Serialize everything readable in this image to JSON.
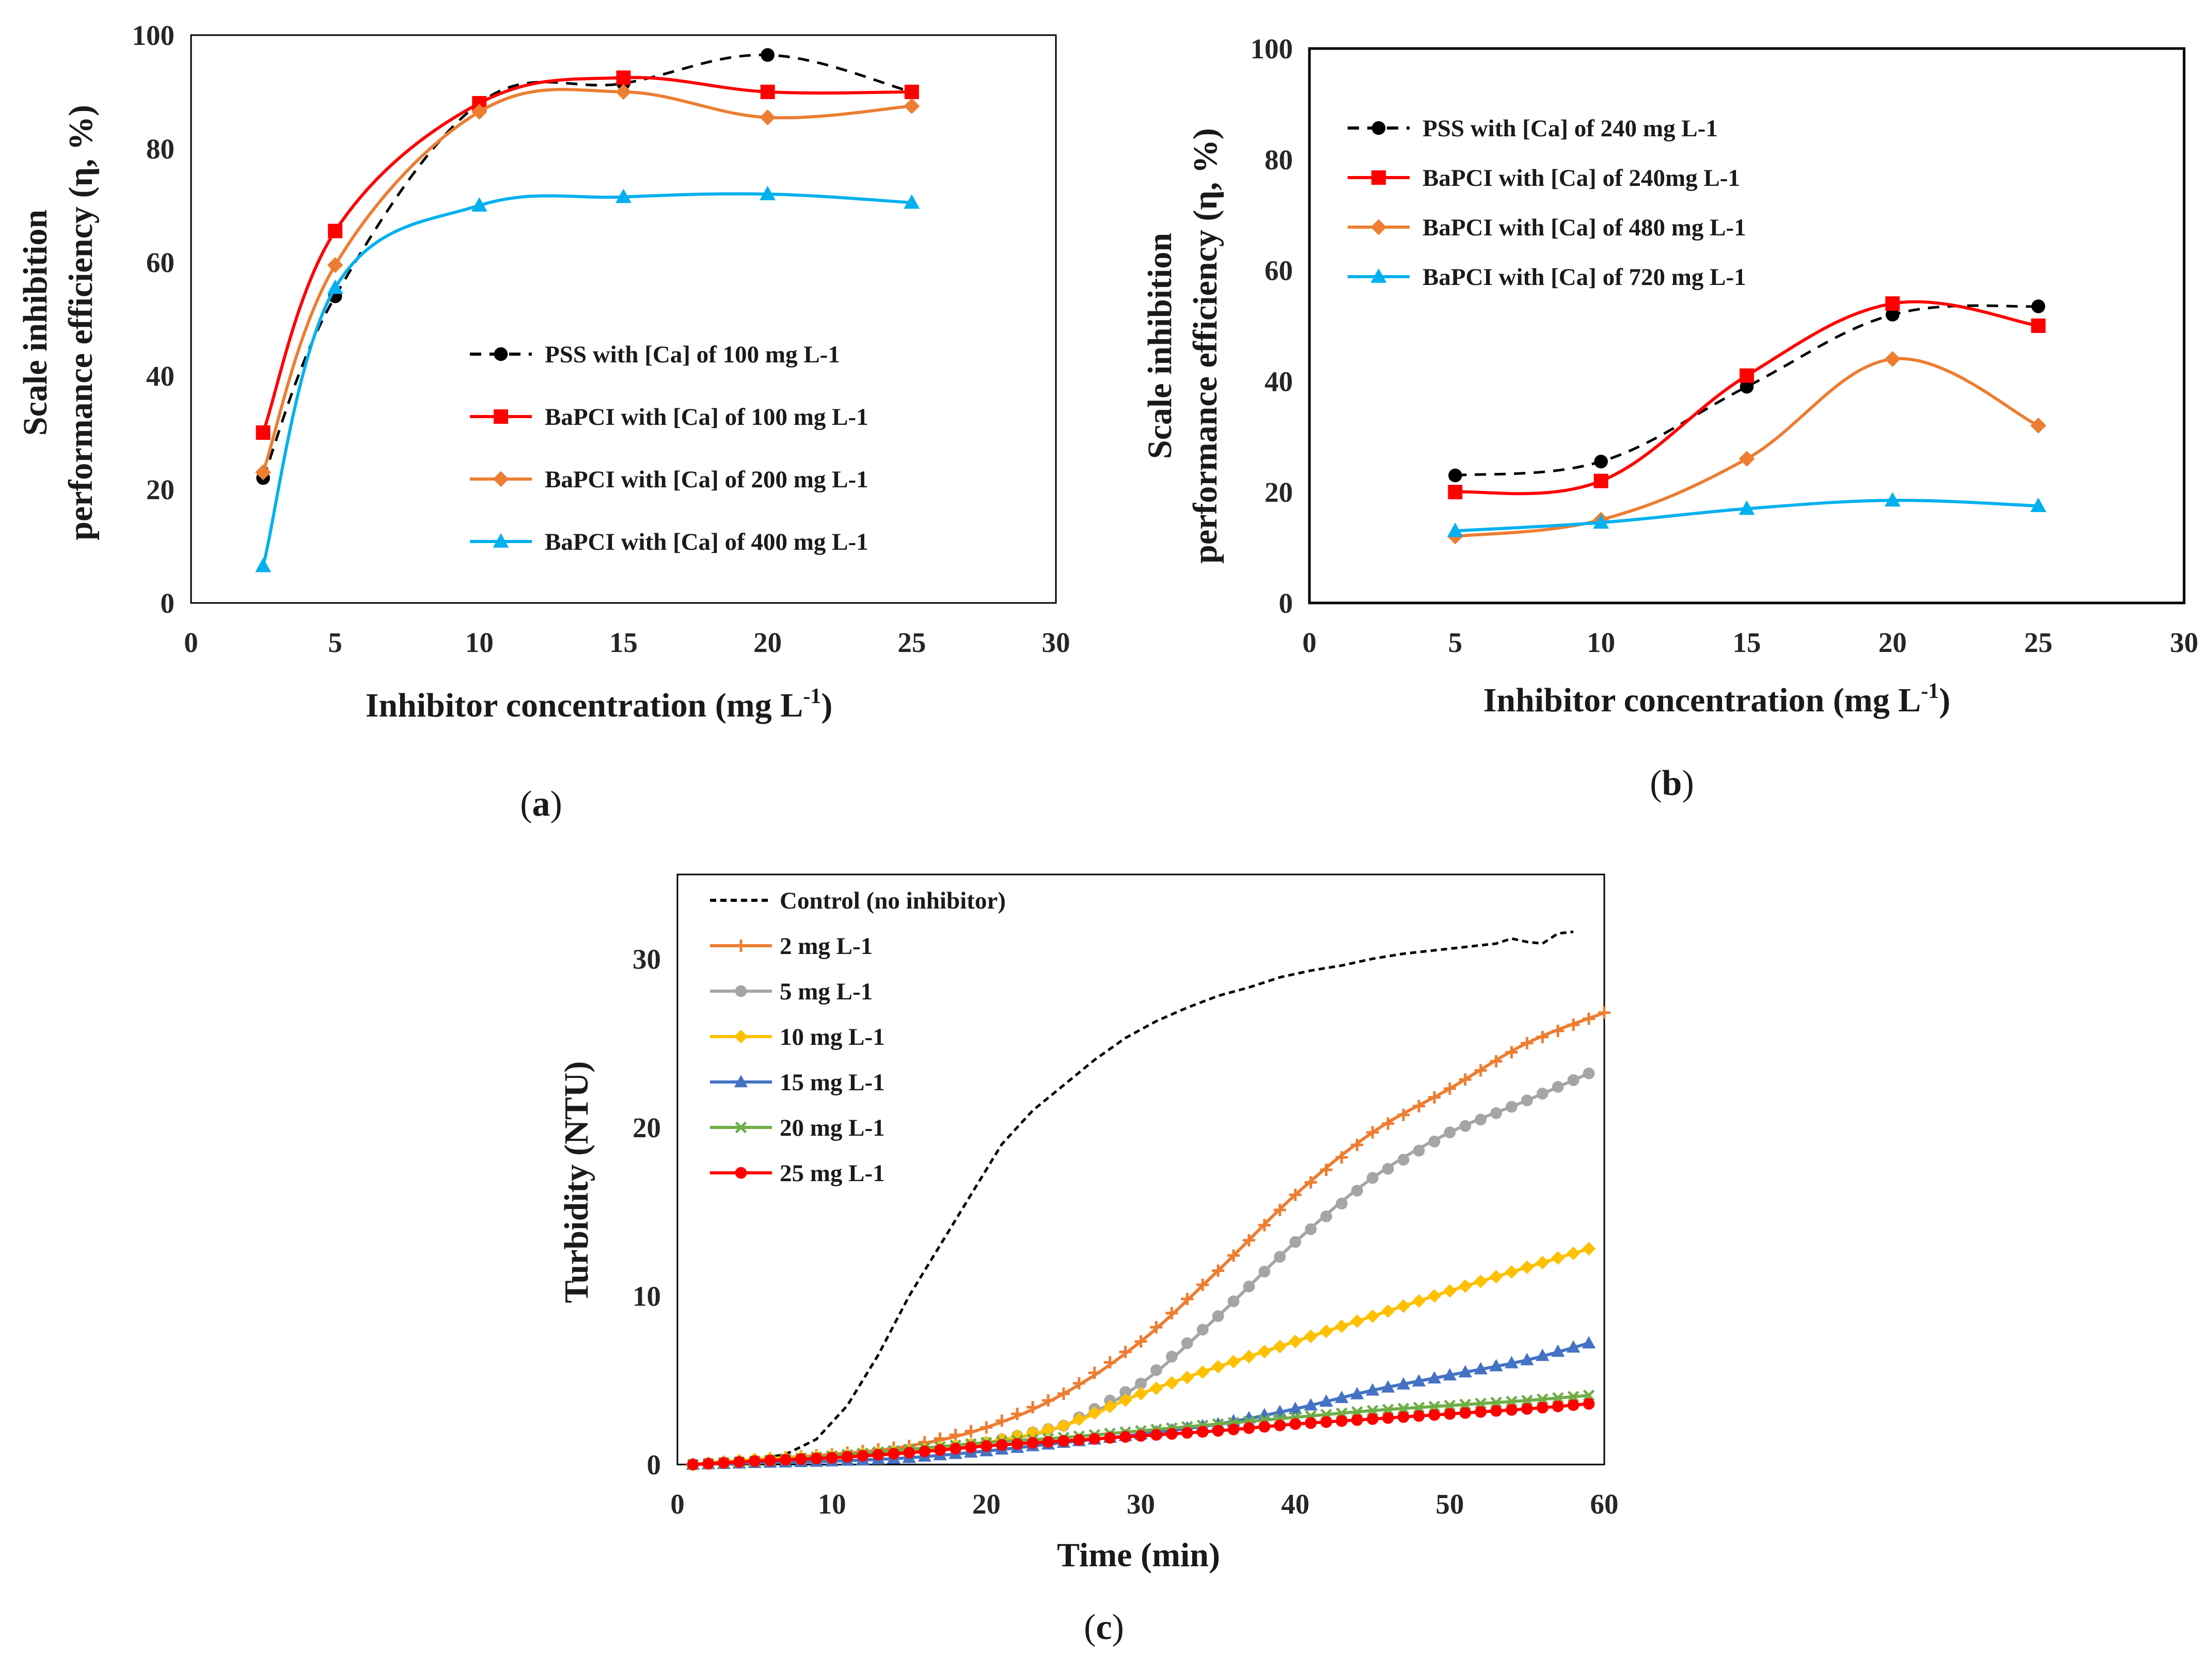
{
  "colors": {
    "black": "#000000",
    "red": "#ff0000",
    "orange": "#ed7d31",
    "cyan": "#00b0f0",
    "gray": "#a5a5a5",
    "yellow": "#ffc000",
    "blue": "#4472c4",
    "green": "#70ad47"
  },
  "chart_data": [
    {
      "id": "a",
      "type": "line",
      "caption": "a",
      "xlabel": "Inhibitor concentration (mg L",
      "xlabel_sup": "-1",
      "xlabel_end": ")",
      "ylabel_line1": "Scale inhibition",
      "ylabel_line2": "performance efficiency (η, %)",
      "xlim": [
        0,
        30
      ],
      "ylim": [
        0,
        100
      ],
      "xticks": [
        0,
        5,
        10,
        15,
        20,
        25,
        30
      ],
      "yticks": [
        0,
        20,
        40,
        60,
        80,
        100
      ],
      "legend_position": "center-right",
      "series": [
        {
          "name": "PSS with [Ca] of 100 mg L-1",
          "color": "#000000",
          "marker": "circle",
          "dashed": true,
          "x": [
            2.5,
            5,
            10,
            15,
            20,
            25
          ],
          "y": [
            22,
            54,
            88,
            91.5,
            96.5,
            90
          ]
        },
        {
          "name": "BaPCI with [Ca] of 100 mg L-1",
          "color": "#ff0000",
          "marker": "square",
          "dashed": false,
          "x": [
            2.5,
            5,
            10,
            15,
            20,
            25
          ],
          "y": [
            30,
            65.5,
            88,
            92.5,
            90,
            90
          ]
        },
        {
          "name": "BaPCI with [Ca] of 200 mg L-1",
          "color": "#ed7d31",
          "marker": "diamond",
          "dashed": false,
          "x": [
            2.5,
            5,
            10,
            15,
            20,
            25
          ],
          "y": [
            23,
            59.5,
            86.5,
            90,
            85.5,
            87.5
          ]
        },
        {
          "name": "BaPCI with [Ca] of 400 mg L-1",
          "color": "#00b0f0",
          "marker": "triangle",
          "dashed": false,
          "x": [
            2.5,
            5,
            10,
            15,
            20,
            25
          ],
          "y": [
            6.5,
            55.5,
            70,
            71.5,
            72,
            70.5
          ]
        }
      ]
    },
    {
      "id": "b",
      "type": "line",
      "caption": "b",
      "xlabel": "Inhibitor concentration (mg L",
      "xlabel_sup": "-1",
      "xlabel_end": ")",
      "ylabel_line1": "Scale inhibition",
      "ylabel_line2": "performance efficiency (η, %)",
      "xlim": [
        0,
        30
      ],
      "ylim": [
        0,
        100
      ],
      "xticks": [
        0,
        5,
        10,
        15,
        20,
        25,
        30
      ],
      "yticks": [
        0,
        20,
        40,
        60,
        80,
        100
      ],
      "legend_position": "top-left",
      "series": [
        {
          "name": "PSS with [Ca] of 240 mg L-1",
          "color": "#000000",
          "marker": "circle",
          "dashed": true,
          "x": [
            5,
            10,
            15,
            20,
            25
          ],
          "y": [
            23,
            25.5,
            39,
            52,
            53.5
          ]
        },
        {
          "name": "BaPCI with [Ca] of 240mg L-1",
          "color": "#ff0000",
          "marker": "square",
          "dashed": false,
          "x": [
            5,
            10,
            15,
            20,
            25
          ],
          "y": [
            20,
            22,
            41,
            54,
            50
          ]
        },
        {
          "name": "BaPCI with [Ca] of 480 mg L-1",
          "color": "#ed7d31",
          "marker": "diamond",
          "dashed": false,
          "x": [
            5,
            10,
            15,
            20,
            25
          ],
          "y": [
            12,
            15,
            26,
            44,
            32
          ]
        },
        {
          "name": "BaPCI with [Ca] of 720 mg L-1",
          "color": "#00b0f0",
          "marker": "triangle",
          "dashed": false,
          "x": [
            5,
            10,
            15,
            20,
            25
          ],
          "y": [
            13,
            14.5,
            17,
            18.5,
            17.5
          ]
        }
      ]
    },
    {
      "id": "c",
      "type": "line",
      "caption": "c",
      "xlabel": "Time (min)",
      "ylabel": "Turbidity (NTU)",
      "xlim": [
        0,
        60
      ],
      "ylim": [
        0,
        35
      ],
      "xticks": [
        0,
        10,
        20,
        30,
        40,
        50,
        60
      ],
      "yticks": [
        0,
        10,
        20,
        30
      ],
      "legend_position": "top-left",
      "series": [
        {
          "name": "Control (no inhibitor)",
          "color": "#000000",
          "marker": "none",
          "dashed": true,
          "x": [
            1,
            3,
            5,
            7,
            9,
            11,
            13,
            15,
            17,
            19,
            21,
            23,
            25,
            27,
            29,
            31,
            33,
            35,
            37,
            39,
            41,
            43,
            45,
            47,
            49,
            51,
            53,
            54,
            55,
            56,
            57,
            58
          ],
          "y": [
            0,
            0.2,
            0.3,
            0.6,
            1.5,
            3.5,
            6.5,
            10,
            13,
            16,
            19,
            21,
            22.5,
            24,
            25.3,
            26.3,
            27.1,
            27.8,
            28.3,
            28.9,
            29.3,
            29.6,
            30,
            30.3,
            30.5,
            30.7,
            30.9,
            31.2,
            31.0,
            30.9,
            31.5,
            31.6
          ]
        },
        {
          "name": "2 mg L-1",
          "color": "#ed7d31",
          "marker": "plus",
          "dashed": false,
          "x": [
            1,
            5,
            10,
            15,
            20,
            25,
            30,
            35,
            40,
            45,
            50,
            55,
            60
          ],
          "y": [
            0,
            0.3,
            0.6,
            1.1,
            2.2,
            4.2,
            7.3,
            11.5,
            16,
            19.7,
            22.3,
            25,
            26.8
          ]
        },
        {
          "name": "5 mg L-1",
          "color": "#a5a5a5",
          "marker": "circle",
          "dashed": false,
          "x": [
            1,
            5,
            10,
            15,
            20,
            25,
            30,
            35,
            40,
            45,
            50,
            55,
            59
          ],
          "y": [
            0,
            0.2,
            0.4,
            0.7,
            1.3,
            2.3,
            4.8,
            8.8,
            13.2,
            17,
            19.7,
            21.6,
            23.2
          ]
        },
        {
          "name": "10 mg L-1",
          "color": "#ffc000",
          "marker": "diamond",
          "dashed": false,
          "x": [
            1,
            5,
            10,
            15,
            20,
            25,
            30,
            35,
            40,
            45,
            50,
            55,
            59
          ],
          "y": [
            0,
            0.3,
            0.5,
            0.8,
            1.3,
            2.3,
            4.2,
            5.8,
            7.3,
            8.8,
            10.3,
            11.7,
            12.8
          ]
        },
        {
          "name": "15 mg L-1",
          "color": "#4472c4",
          "marker": "triangle",
          "dashed": false,
          "x": [
            1,
            5,
            10,
            15,
            20,
            25,
            30,
            35,
            40,
            45,
            50,
            55,
            59
          ],
          "y": [
            0,
            0.1,
            0.2,
            0.4,
            0.8,
            1.3,
            1.8,
            2.4,
            3.3,
            4.4,
            5.3,
            6.2,
            7.2
          ]
        },
        {
          "name": "20 mg L-1",
          "color": "#70ad47",
          "marker": "x",
          "dashed": false,
          "x": [
            1,
            5,
            10,
            15,
            20,
            25,
            30,
            35,
            40,
            45,
            50,
            55,
            59
          ],
          "y": [
            0,
            0.2,
            0.5,
            0.9,
            1.3,
            1.6,
            2.0,
            2.4,
            2.8,
            3.2,
            3.5,
            3.8,
            4.1
          ]
        },
        {
          "name": "25 mg L-1",
          "color": "#ff0000",
          "marker": "circle",
          "dashed": false,
          "x": [
            1,
            5,
            10,
            15,
            20,
            25,
            30,
            35,
            40,
            45,
            50,
            55,
            59
          ],
          "y": [
            0,
            0.2,
            0.4,
            0.7,
            1.1,
            1.4,
            1.7,
            2.0,
            2.4,
            2.7,
            3.0,
            3.3,
            3.6
          ]
        }
      ]
    }
  ]
}
